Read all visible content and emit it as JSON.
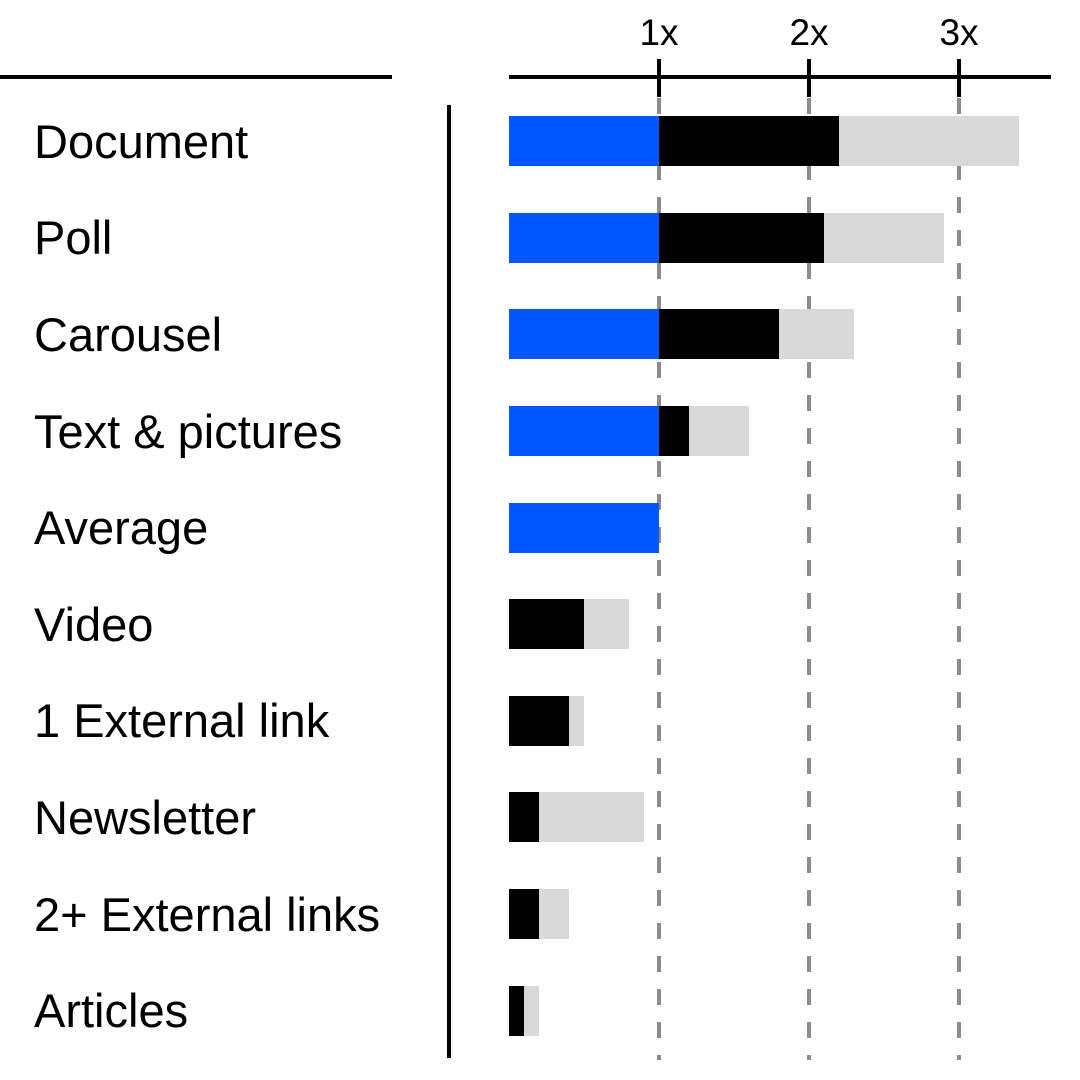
{
  "colors": {
    "average_blue": "#0056FF",
    "median_black": "#000000",
    "top_gray": "#D9D9D9",
    "gridline_gray": "#8C8C8C",
    "axis_black": "#000000"
  },
  "chart_data": {
    "type": "bar",
    "orientation": "horizontal",
    "stacked": true,
    "grid": "dashed vertical lines at each tick",
    "legend": "none",
    "xlim": [
      0,
      3.62
    ],
    "x_ticks": [
      {
        "label": "1x",
        "value": 1
      },
      {
        "label": "2x",
        "value": 2
      },
      {
        "label": "3x",
        "value": 3
      }
    ],
    "categories": [
      "Document",
      "Poll",
      "Carousel",
      "Text & pictures",
      "Average",
      "Video",
      "1 External link",
      "Newsletter",
      "2+ External links",
      "Articles"
    ],
    "series": [
      {
        "name": "average-baseline-blue",
        "role": "segment from 0 up to the 1x average line",
        "values": [
          1.0,
          1.0,
          1.0,
          1.0,
          1.0,
          0,
          0,
          0,
          0,
          0
        ]
      },
      {
        "name": "median-reach-black",
        "role": "black segment width in x-multiples",
        "values": [
          1.2,
          1.1,
          0.8,
          0.2,
          0,
          0.5,
          0.4,
          0.2,
          0.2,
          0.1
        ]
      },
      {
        "name": "top-reach-gray",
        "role": "gray segment width in x-multiples",
        "values": [
          1.2,
          0.8,
          0.5,
          0.4,
          0,
          0.3,
          0.1,
          0.7,
          0.2,
          0.1
        ]
      }
    ],
    "bar_end_totals_x": [
      3.4,
      2.9,
      2.3,
      1.6,
      1.0,
      0.8,
      0.5,
      0.9,
      0.4,
      0.2
    ]
  }
}
